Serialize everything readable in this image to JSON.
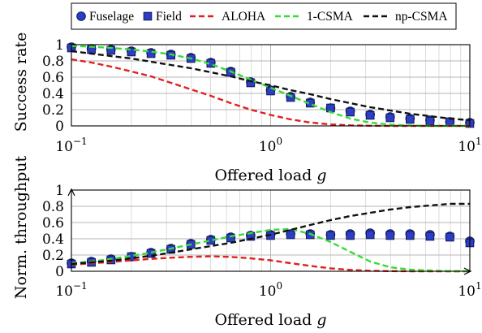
{
  "legend": {
    "items": [
      {
        "label": "Fuselage",
        "marker": "circle",
        "color": "#2c3fc4"
      },
      {
        "label": "Field",
        "marker": "square",
        "color": "#2c3fc4"
      },
      {
        "label": "ALOHA",
        "marker": "dash",
        "color": "#e02020"
      },
      {
        "label": "1-CSMA",
        "marker": "dash",
        "color": "#33dd33"
      },
      {
        "label": "np-CSMA",
        "marker": "dash",
        "color": "#111111"
      }
    ]
  },
  "chart_data": [
    {
      "type": "line",
      "ylabel": "Success rate",
      "xlabel": "Offered load g",
      "xscale": "log",
      "xlim": [
        0.1,
        10
      ],
      "ylim": [
        0,
        1
      ],
      "yticks": [
        "0",
        "0.2",
        "0.4",
        "0.6",
        "0.8",
        "1"
      ],
      "xticks": [
        {
          "base": "10",
          "exp": "−1"
        },
        {
          "base": "10",
          "exp": "0"
        },
        {
          "base": "10",
          "exp": "1"
        }
      ],
      "grid": true,
      "series": [
        {
          "name": "Fuselage",
          "marker": "circle",
          "color": "#2c3fc4",
          "x": [
            0.1,
            0.126,
            0.158,
            0.2,
            0.251,
            0.316,
            0.398,
            0.501,
            0.631,
            0.794,
            1.0,
            1.26,
            1.58,
            2.0,
            2.51,
            3.16,
            3.98,
            5.01,
            6.31,
            7.94,
            10.0
          ],
          "y": [
            0.97,
            0.95,
            0.94,
            0.92,
            0.9,
            0.88,
            0.84,
            0.78,
            0.67,
            0.54,
            0.44,
            0.36,
            0.29,
            0.22,
            0.18,
            0.14,
            0.11,
            0.09,
            0.07,
            0.05,
            0.04
          ]
        },
        {
          "name": "Field",
          "marker": "square",
          "color": "#2c3fc4",
          "x": [
            0.1,
            0.126,
            0.158,
            0.2,
            0.251,
            0.316,
            0.398,
            0.501,
            0.631,
            0.794,
            1.0,
            1.26,
            1.58,
            2.0,
            2.51,
            3.16,
            3.98,
            5.01,
            6.31,
            7.94,
            10.0
          ],
          "y": [
            0.96,
            0.94,
            0.93,
            0.91,
            0.89,
            0.87,
            0.83,
            0.77,
            0.66,
            0.53,
            0.43,
            0.35,
            0.28,
            0.22,
            0.17,
            0.13,
            0.1,
            0.08,
            0.06,
            0.05,
            0.03
          ]
        },
        {
          "name": "ALOHA",
          "style": "dashed",
          "color": "#e02020",
          "x": [
            0.1,
            0.126,
            0.158,
            0.2,
            0.251,
            0.316,
            0.398,
            0.501,
            0.631,
            0.794,
            1.0,
            1.26,
            1.58,
            2.0,
            2.51,
            3.16,
            3.98,
            5.01,
            6.31,
            7.94,
            10.0
          ],
          "y": [
            0.82,
            0.78,
            0.73,
            0.67,
            0.61,
            0.53,
            0.45,
            0.37,
            0.28,
            0.2,
            0.135,
            0.08,
            0.042,
            0.018,
            0.007,
            0.002,
            0,
            0,
            0,
            0,
            0
          ]
        },
        {
          "name": "1-CSMA",
          "style": "dashed",
          "color": "#33dd33",
          "x": [
            0.1,
            0.126,
            0.158,
            0.2,
            0.251,
            0.316,
            0.398,
            0.501,
            0.631,
            0.794,
            1.0,
            1.26,
            1.58,
            2.0,
            2.51,
            3.16,
            3.98,
            5.01,
            6.31,
            7.94,
            10.0
          ],
          "y": [
            0.985,
            0.975,
            0.96,
            0.94,
            0.915,
            0.88,
            0.83,
            0.76,
            0.67,
            0.57,
            0.47,
            0.37,
            0.27,
            0.17,
            0.09,
            0.04,
            0.015,
            0.005,
            0,
            0,
            0
          ]
        },
        {
          "name": "np-CSMA",
          "style": "dashed",
          "color": "#111111",
          "x": [
            0.1,
            0.126,
            0.158,
            0.2,
            0.251,
            0.316,
            0.398,
            0.501,
            0.631,
            0.794,
            1.0,
            1.26,
            1.58,
            2.0,
            2.51,
            3.16,
            3.98,
            5.01,
            6.31,
            7.94,
            10.0
          ],
          "y": [
            0.92,
            0.89,
            0.86,
            0.83,
            0.79,
            0.75,
            0.71,
            0.66,
            0.61,
            0.55,
            0.5,
            0.44,
            0.39,
            0.33,
            0.28,
            0.23,
            0.19,
            0.15,
            0.12,
            0.09,
            0.07
          ]
        }
      ]
    },
    {
      "type": "line",
      "ylabel": "Norm. throughput",
      "xlabel": "Offered load g",
      "xscale": "log",
      "xlim": [
        0.1,
        10
      ],
      "ylim": [
        0,
        1
      ],
      "yticks": [
        "0",
        "0.2",
        "0.4",
        "0.6",
        "0.8",
        "1"
      ],
      "xticks": [
        {
          "base": "10",
          "exp": "−1"
        },
        {
          "base": "10",
          "exp": "0"
        },
        {
          "base": "10",
          "exp": "1"
        }
      ],
      "grid": true,
      "series": [
        {
          "name": "Fuselage",
          "marker": "circle",
          "color": "#2c3fc4",
          "x": [
            0.1,
            0.126,
            0.158,
            0.2,
            0.251,
            0.316,
            0.398,
            0.501,
            0.631,
            0.794,
            1.0,
            1.26,
            1.58,
            2.0,
            2.51,
            3.16,
            3.98,
            5.01,
            6.31,
            7.94,
            10.0
          ],
          "y": [
            0.1,
            0.12,
            0.15,
            0.18,
            0.23,
            0.28,
            0.34,
            0.39,
            0.42,
            0.44,
            0.45,
            0.46,
            0.46,
            0.45,
            0.46,
            0.47,
            0.46,
            0.46,
            0.45,
            0.43,
            0.37
          ]
        },
        {
          "name": "Field",
          "marker": "square",
          "color": "#2c3fc4",
          "x": [
            0.1,
            0.126,
            0.158,
            0.2,
            0.251,
            0.316,
            0.398,
            0.501,
            0.631,
            0.794,
            1.0,
            1.26,
            1.58,
            2.0,
            2.51,
            3.16,
            3.98,
            5.01,
            6.31,
            7.94,
            10.0
          ],
          "y": [
            0.09,
            0.11,
            0.14,
            0.18,
            0.22,
            0.27,
            0.33,
            0.38,
            0.41,
            0.43,
            0.44,
            0.45,
            0.45,
            0.44,
            0.44,
            0.45,
            0.44,
            0.44,
            0.43,
            0.42,
            0.35
          ]
        },
        {
          "name": "ALOHA",
          "style": "dashed",
          "color": "#e02020",
          "x": [
            0.1,
            0.126,
            0.158,
            0.2,
            0.251,
            0.316,
            0.398,
            0.501,
            0.631,
            0.794,
            1.0,
            1.26,
            1.58,
            2.0,
            2.51,
            3.16,
            3.98,
            5.01,
            6.31,
            7.94,
            10.0
          ],
          "y": [
            0.082,
            0.098,
            0.115,
            0.134,
            0.153,
            0.167,
            0.178,
            0.184,
            0.177,
            0.159,
            0.135,
            0.1,
            0.066,
            0.036,
            0.017,
            0.006,
            0.002,
            0,
            0,
            0,
            0
          ]
        },
        {
          "name": "1-CSMA",
          "style": "dashed",
          "color": "#33dd33",
          "x": [
            0.1,
            0.126,
            0.158,
            0.2,
            0.251,
            0.316,
            0.398,
            0.501,
            0.631,
            0.794,
            1.0,
            1.26,
            1.58,
            2.0,
            2.51,
            3.16,
            3.98,
            5.01,
            6.31,
            7.94,
            10.0
          ],
          "y": [
            0.1,
            0.12,
            0.15,
            0.19,
            0.23,
            0.28,
            0.33,
            0.38,
            0.43,
            0.47,
            0.51,
            0.52,
            0.46,
            0.36,
            0.24,
            0.12,
            0.05,
            0.02,
            0.01,
            0,
            0
          ]
        },
        {
          "name": "np-CSMA",
          "style": "dashed",
          "color": "#111111",
          "x": [
            0.1,
            0.126,
            0.158,
            0.2,
            0.251,
            0.316,
            0.398,
            0.501,
            0.631,
            0.794,
            1.0,
            1.26,
            1.58,
            2.0,
            2.51,
            3.16,
            3.98,
            5.01,
            6.31,
            7.94,
            10.0
          ],
          "y": [
            0.09,
            0.11,
            0.13,
            0.16,
            0.19,
            0.23,
            0.27,
            0.31,
            0.35,
            0.4,
            0.45,
            0.51,
            0.57,
            0.63,
            0.68,
            0.72,
            0.76,
            0.79,
            0.81,
            0.83,
            0.83
          ]
        }
      ]
    }
  ]
}
